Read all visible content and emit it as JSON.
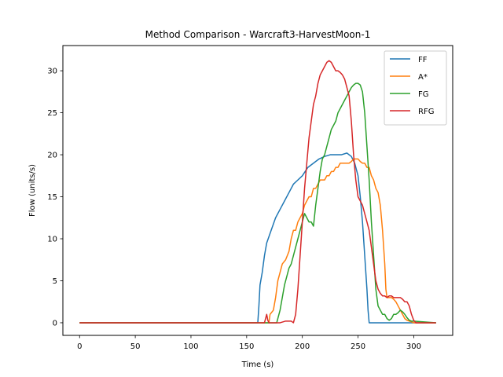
{
  "chart_data": {
    "type": "line",
    "title": "Method Comparison - Warcraft3-HarvestMoon-1",
    "xlabel": "Time (s)",
    "ylabel": "Flow (units/s)",
    "xlim": [
      -15,
      335
    ],
    "ylim": [
      -1.5,
      33
    ],
    "xticks": [
      0,
      50,
      100,
      150,
      200,
      250,
      300
    ],
    "yticks": [
      0,
      5,
      10,
      15,
      20,
      25,
      30
    ],
    "grid": false,
    "legend_position": "top-right",
    "series": [
      {
        "name": "FF",
        "color": "#1f77b4",
        "points": [
          [
            0,
            0
          ],
          [
            160,
            0
          ],
          [
            161,
            2
          ],
          [
            162,
            4.5
          ],
          [
            164,
            6
          ],
          [
            166,
            8
          ],
          [
            168,
            9.5
          ],
          [
            172,
            11
          ],
          [
            176,
            12.5
          ],
          [
            180,
            13.5
          ],
          [
            184,
            14.5
          ],
          [
            188,
            15.5
          ],
          [
            192,
            16.5
          ],
          [
            196,
            17
          ],
          [
            200,
            17.5
          ],
          [
            205,
            18.5
          ],
          [
            210,
            19
          ],
          [
            215,
            19.5
          ],
          [
            220,
            19.8
          ],
          [
            225,
            20
          ],
          [
            230,
            20
          ],
          [
            235,
            20
          ],
          [
            240,
            20.2
          ],
          [
            244,
            19.8
          ],
          [
            247,
            19
          ],
          [
            250,
            17.5
          ],
          [
            252,
            15
          ],
          [
            254,
            12
          ],
          [
            256,
            8
          ],
          [
            258,
            4
          ],
          [
            259,
            1.5
          ],
          [
            260,
            0
          ],
          [
            320,
            0
          ]
        ]
      },
      {
        "name": "A*",
        "color": "#ff7f0e",
        "points": [
          [
            0,
            0
          ],
          [
            170,
            0
          ],
          [
            171,
            1
          ],
          [
            174,
            1.5
          ],
          [
            176,
            3
          ],
          [
            178,
            5
          ],
          [
            180,
            6
          ],
          [
            182,
            7
          ],
          [
            185,
            7.5
          ],
          [
            188,
            8.5
          ],
          [
            190,
            10
          ],
          [
            192,
            11
          ],
          [
            194,
            11
          ],
          [
            196,
            12
          ],
          [
            198,
            12.5
          ],
          [
            200,
            13
          ],
          [
            202,
            14
          ],
          [
            204,
            14.5
          ],
          [
            206,
            15
          ],
          [
            208,
            15
          ],
          [
            210,
            16
          ],
          [
            212,
            16
          ],
          [
            214,
            16.5
          ],
          [
            216,
            17
          ],
          [
            218,
            17
          ],
          [
            220,
            17
          ],
          [
            222,
            17.5
          ],
          [
            224,
            17.5
          ],
          [
            226,
            18
          ],
          [
            228,
            18
          ],
          [
            230,
            18.5
          ],
          [
            232,
            18.5
          ],
          [
            234,
            19
          ],
          [
            236,
            19
          ],
          [
            238,
            19
          ],
          [
            240,
            19
          ],
          [
            242,
            19
          ],
          [
            244,
            19.2
          ],
          [
            246,
            19.5
          ],
          [
            248,
            19.5
          ],
          [
            250,
            19.5
          ],
          [
            252,
            19.2
          ],
          [
            254,
            19
          ],
          [
            256,
            19
          ],
          [
            258,
            18.5
          ],
          [
            260,
            18.5
          ],
          [
            262,
            17.5
          ],
          [
            264,
            17
          ],
          [
            266,
            16
          ],
          [
            268,
            15.5
          ],
          [
            270,
            14
          ],
          [
            272,
            11
          ],
          [
            274,
            7
          ],
          [
            275,
            4
          ],
          [
            276,
            3
          ],
          [
            278,
            3
          ],
          [
            280,
            3
          ],
          [
            282,
            2.8
          ],
          [
            284,
            2.5
          ],
          [
            286,
            2
          ],
          [
            288,
            1.5
          ],
          [
            290,
            1
          ],
          [
            292,
            0.5
          ],
          [
            294,
            0.3
          ],
          [
            296,
            0.2
          ],
          [
            300,
            0
          ],
          [
            320,
            0
          ]
        ]
      },
      {
        "name": "FG",
        "color": "#2ca02c",
        "points": [
          [
            0,
            0
          ],
          [
            177,
            0
          ],
          [
            178,
            0.5
          ],
          [
            180,
            1.5
          ],
          [
            182,
            3
          ],
          [
            184,
            4.5
          ],
          [
            186,
            5.5
          ],
          [
            188,
            6.5
          ],
          [
            190,
            7
          ],
          [
            192,
            8
          ],
          [
            194,
            9
          ],
          [
            196,
            10
          ],
          [
            198,
            11
          ],
          [
            200,
            12
          ],
          [
            202,
            13
          ],
          [
            204,
            12.5
          ],
          [
            206,
            12
          ],
          [
            208,
            12
          ],
          [
            210,
            11.5
          ],
          [
            212,
            14
          ],
          [
            214,
            16
          ],
          [
            216,
            18
          ],
          [
            218,
            19.5
          ],
          [
            220,
            20
          ],
          [
            222,
            21
          ],
          [
            224,
            22
          ],
          [
            226,
            23
          ],
          [
            228,
            23.5
          ],
          [
            230,
            24
          ],
          [
            232,
            25
          ],
          [
            234,
            25.5
          ],
          [
            236,
            26
          ],
          [
            238,
            26.5
          ],
          [
            240,
            27
          ],
          [
            242,
            27.5
          ],
          [
            244,
            28
          ],
          [
            246,
            28.3
          ],
          [
            248,
            28.5
          ],
          [
            250,
            28.5
          ],
          [
            252,
            28.3
          ],
          [
            254,
            27.5
          ],
          [
            256,
            25
          ],
          [
            258,
            21
          ],
          [
            260,
            17
          ],
          [
            262,
            12
          ],
          [
            264,
            8
          ],
          [
            266,
            4
          ],
          [
            268,
            2
          ],
          [
            270,
            1.5
          ],
          [
            272,
            1
          ],
          [
            274,
            1
          ],
          [
            276,
            0.5
          ],
          [
            278,
            0.3
          ],
          [
            280,
            0.5
          ],
          [
            282,
            1
          ],
          [
            284,
            1
          ],
          [
            286,
            1.2
          ],
          [
            288,
            1.5
          ],
          [
            290,
            1.3
          ],
          [
            292,
            1
          ],
          [
            294,
            0.6
          ],
          [
            296,
            0.3
          ],
          [
            298,
            0.2
          ],
          [
            300,
            0.2
          ],
          [
            320,
            0
          ]
        ]
      },
      {
        "name": "RFG",
        "color": "#d62728",
        "points": [
          [
            0,
            0
          ],
          [
            166,
            0
          ],
          [
            167,
            0.5
          ],
          [
            168,
            1
          ],
          [
            169,
            0.3
          ],
          [
            170,
            0
          ],
          [
            178,
            0
          ],
          [
            180,
            0
          ],
          [
            185,
            0.2
          ],
          [
            190,
            0.2
          ],
          [
            192,
            0
          ],
          [
            194,
            1
          ],
          [
            196,
            4
          ],
          [
            198,
            8
          ],
          [
            200,
            12
          ],
          [
            202,
            16
          ],
          [
            204,
            19
          ],
          [
            206,
            22
          ],
          [
            208,
            24
          ],
          [
            210,
            26
          ],
          [
            212,
            27
          ],
          [
            214,
            28.5
          ],
          [
            216,
            29.5
          ],
          [
            218,
            30
          ],
          [
            220,
            30.5
          ],
          [
            222,
            31
          ],
          [
            224,
            31.2
          ],
          [
            226,
            31
          ],
          [
            228,
            30.5
          ],
          [
            230,
            30
          ],
          [
            232,
            30
          ],
          [
            234,
            29.8
          ],
          [
            236,
            29.5
          ],
          [
            238,
            29
          ],
          [
            240,
            28
          ],
          [
            242,
            27
          ],
          [
            244,
            24
          ],
          [
            246,
            20
          ],
          [
            248,
            17
          ],
          [
            250,
            15
          ],
          [
            252,
            14.5
          ],
          [
            254,
            14
          ],
          [
            256,
            13
          ],
          [
            258,
            12
          ],
          [
            260,
            11
          ],
          [
            262,
            9
          ],
          [
            264,
            7
          ],
          [
            266,
            5
          ],
          [
            268,
            4
          ],
          [
            270,
            3.5
          ],
          [
            272,
            3.2
          ],
          [
            274,
            3.2
          ],
          [
            276,
            3
          ],
          [
            278,
            3.2
          ],
          [
            280,
            3.2
          ],
          [
            282,
            3
          ],
          [
            284,
            3
          ],
          [
            286,
            3
          ],
          [
            288,
            3
          ],
          [
            290,
            2.8
          ],
          [
            292,
            2.5
          ],
          [
            294,
            2.5
          ],
          [
            296,
            2
          ],
          [
            298,
            1
          ],
          [
            300,
            0.3
          ],
          [
            302,
            0
          ],
          [
            320,
            0
          ]
        ]
      }
    ]
  }
}
